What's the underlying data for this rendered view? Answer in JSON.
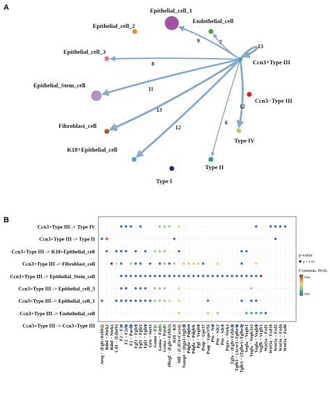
{
  "panel_a": {
    "label": "A",
    "hub_label": "Ccn3+Type III",
    "nodes": [
      {
        "name": "Epithelial_cell_1",
        "color": "#a353a6",
        "size": 3
      },
      {
        "name": "Endothelial_cell",
        "color": "#3fa34d",
        "size": 1
      },
      {
        "name": "Epithelial_cell_2",
        "color": "#e8901f",
        "size": 1
      },
      {
        "name": "Epithelial_cell_3",
        "color": "#e0749b",
        "size": 1
      },
      {
        "name": "Epithelial_Stem_cell",
        "color": "#b890c8",
        "size": 2
      },
      {
        "name": "Ccn3−Type III",
        "color": "#d42a1e",
        "size": 1
      },
      {
        "name": "Fibroblast_cell",
        "color": "#a85a1f",
        "size": 1
      },
      {
        "name": "Type IV",
        "color": "#a8d36a",
        "size": 1
      },
      {
        "name": "K18+Epithelial_cell",
        "color": "#5b9fd3",
        "size": 1
      },
      {
        "name": "Type II",
        "color": "#2e9e76",
        "size": 1
      },
      {
        "name": "Type I",
        "color": "#1f2d7a",
        "size": 1
      }
    ],
    "edges": [
      {
        "target": "Epithelial_cell_1",
        "weight": "9"
      },
      {
        "target": "Endothelial_cell",
        "weight": "7"
      },
      {
        "target": "Ccn3+Type III",
        "weight": "13"
      },
      {
        "target": "Epithelial_cell_3",
        "weight": "8"
      },
      {
        "target": "Epithelial_Stem_cell",
        "weight": "11"
      },
      {
        "target": "Type IV",
        "weight": "12"
      },
      {
        "target": "Fibroblast_cell",
        "weight": "13"
      },
      {
        "target": "Type II",
        "weight": "6"
      },
      {
        "target": "K18+Epithelial_cell",
        "weight": "12"
      }
    ],
    "edge_color": "#87a9cc"
  },
  "panel_b": {
    "label": "B",
    "rows": [
      "Ccn3+Type III -> Type IV",
      "Ccn3+Type III -> Type II",
      "Ccn3+Type III -> K18+Epithelial_cell",
      "Ccn3+Type III -> Fibroblast_cell",
      "Ccn3+Type III -> Epithelial_Stem_cell",
      "Ccn3+Type III -> Epithelial_cell_3",
      "Ccn3+Type III -> Epithelial_cell_1",
      "Ccn3+Type III -> Endothelial_cell",
      "Ccn3+Type III -> Ccn3+Type III"
    ],
    "columns": [
      "Areg − (Egfr+Erbb2)",
      "Bdnf − Ntrk2",
      "Bdnf − Ntrk2",
      "Cd1 − (Ednrb)",
      "F2 − F2r",
      "F2 − F2rl1",
      "F2 − Pard3",
      "Fgf1 − Fgfr1",
      "Fgf1 − Fgfr2",
      "Fgf1 − Fgfr3",
      "Grn − Sort1",
      "Gzma − F2r",
      "Gzma − F2rl1",
      "Gzma − Pard3",
      "Hbegf − (Egfr+Erbb2)",
      "Kitl − Kit",
      "Mif − (Cd74+Cxcr4)",
      "Nampt − (Itga5+Itgb1)",
      "Pdgfa − Pdgfra",
      "Pdgfa − Pdgfrb",
      "Pgf − Vegfr1",
      "Psap − Gpr37",
      "Psap − Gpr37l1",
      "Ptn − Ncl",
      "Ptn − Sdc2",
      "Ptn − Sdc4",
      "Ptprs − Ntrk3",
      "Tgfa − (Egfr+Erbb2)",
      "Tgfb3 − (Acvr1+Tgfbr1)",
      "Tgfb3 − (Tgfbr1+Tgfbr2)",
      "Vegfa − Vegfr1",
      "Vegfa − Vegfr1r2",
      "Vegfa − Vegfr2",
      "Vegfb − Vegfr1",
      "Wnt5a − Fzd1",
      "Wnt5a − Fzd10",
      "Wnt5a − Fzd2",
      "Wnt5a − Fzd4",
      "Wnt5a − Fzd6"
    ],
    "dots": [
      [
        0,
        4,
        "#3b6db4",
        0
      ],
      [
        0,
        5,
        "#3b6db4",
        0
      ],
      [
        0,
        6,
        "#3b6db4",
        0
      ],
      [
        0,
        8,
        "#3b6db4",
        0
      ],
      [
        0,
        12,
        "#8fd18a",
        0
      ],
      [
        0,
        13,
        "#8fd18a",
        0
      ],
      [
        0,
        14,
        "#8fd18a",
        0
      ],
      [
        0,
        16,
        "#f2d65a",
        0
      ],
      [
        0,
        32,
        "#3b6db4",
        0
      ],
      [
        0,
        35,
        "#3b6db4",
        0
      ],
      [
        0,
        36,
        "#3b6db4",
        0
      ],
      [
        0,
        37,
        "#3b6db4",
        0
      ],
      [
        0,
        38,
        "#3b6db4",
        0
      ],
      [
        1,
        0,
        "#3b6db4",
        0
      ],
      [
        1,
        1,
        "#d63c2c",
        0
      ],
      [
        1,
        15,
        "#3b6db4",
        0
      ],
      [
        1,
        36,
        "#3b6db4",
        0
      ],
      [
        2,
        1,
        "#3b6db4",
        0
      ],
      [
        2,
        3,
        "#3b6db4",
        0
      ],
      [
        2,
        4,
        "#3b6db4",
        0
      ],
      [
        2,
        5,
        "#3b6db4",
        0
      ],
      [
        2,
        7,
        "#3b6db4",
        0
      ],
      [
        2,
        9,
        "#3b6db4",
        0
      ],
      [
        2,
        11,
        "#8fd18a",
        0
      ],
      [
        2,
        12,
        "#8fd18a",
        0
      ],
      [
        2,
        13,
        "#8fd18a",
        0
      ],
      [
        2,
        16,
        "#3b6db4",
        0
      ],
      [
        2,
        29,
        "#3b6db4",
        0
      ],
      [
        2,
        30,
        "#3b6db4",
        0
      ],
      [
        3,
        2,
        "#b0202a",
        0
      ],
      [
        3,
        3,
        "#f2d65a",
        0
      ],
      [
        3,
        4,
        "#3b6db4",
        0
      ],
      [
        3,
        6,
        "#8fd18a",
        0
      ],
      [
        3,
        7,
        "#3b6db4",
        0
      ],
      [
        3,
        8,
        "#3b6db4",
        0
      ],
      [
        3,
        10,
        "#3b6db4",
        0
      ],
      [
        3,
        12,
        "#d63c2c",
        0
      ],
      [
        3,
        13,
        "#8fd18a",
        0
      ],
      [
        3,
        14,
        "#3b6db4",
        0
      ],
      [
        3,
        15,
        "#8fd18a",
        0
      ],
      [
        3,
        17,
        "#f2c55a",
        0
      ],
      [
        3,
        18,
        "#f2c55a",
        0
      ],
      [
        3,
        19,
        "#f2c55a",
        0
      ],
      [
        3,
        20,
        "#f2c55a",
        0
      ],
      [
        3,
        21,
        "#3b6db4",
        0
      ],
      [
        3,
        24,
        "#f2d65a",
        0
      ],
      [
        3,
        29,
        "#3b6db4",
        0
      ],
      [
        3,
        32,
        "#f2d65a",
        0
      ],
      [
        4,
        4,
        "#3b6db4",
        0
      ],
      [
        4,
        5,
        "#3b6db4",
        0
      ],
      [
        4,
        6,
        "#3b6db4",
        0
      ],
      [
        4,
        7,
        "#3b6db4",
        0
      ],
      [
        4,
        8,
        "#3b6db4",
        0
      ],
      [
        4,
        9,
        "#3b6db4",
        0
      ],
      [
        4,
        10,
        "#3b6db4",
        0
      ],
      [
        4,
        11,
        "#3b6db4",
        0
      ],
      [
        4,
        12,
        "#3b6db4",
        0
      ],
      [
        4,
        13,
        "#3b6db4",
        0
      ],
      [
        4,
        14,
        "#3b6db4",
        0
      ],
      [
        4,
        15,
        "#3b6db4",
        0
      ],
      [
        4,
        16,
        "#3b6db4",
        0
      ],
      [
        4,
        17,
        "#3b6db4",
        0
      ],
      [
        4,
        18,
        "#3b6db4",
        0
      ],
      [
        4,
        19,
        "#3b6db4",
        0
      ],
      [
        4,
        20,
        "#3b6db4",
        0
      ],
      [
        4,
        21,
        "#3b6db4",
        0
      ],
      [
        4,
        22,
        "#3b6db4",
        0
      ],
      [
        4,
        23,
        "#3b6db4",
        0
      ],
      [
        4,
        24,
        "#3b6db4",
        0
      ],
      [
        4,
        25,
        "#3b6db4",
        0
      ],
      [
        4,
        26,
        "#3b6db4",
        0
      ],
      [
        4,
        27,
        "#3b6db4",
        0
      ],
      [
        4,
        28,
        "#3b6db4",
        0
      ],
      [
        4,
        29,
        "#3b6db4",
        0
      ],
      [
        4,
        30,
        "#3b6db4",
        0
      ],
      [
        4,
        31,
        "#3b6db4",
        0
      ],
      [
        4,
        32,
        "#3b6db4",
        0
      ],
      [
        4,
        33,
        "#b0202a",
        0
      ],
      [
        5,
        4,
        "#3b6db4",
        0
      ],
      [
        5,
        5,
        "#3b6db4",
        0
      ],
      [
        5,
        7,
        "#3b6db4",
        0
      ],
      [
        5,
        8,
        "#3b6db4",
        0
      ],
      [
        5,
        9,
        "#3b6db4",
        0
      ],
      [
        5,
        11,
        "#8fd18a",
        0
      ],
      [
        5,
        12,
        "#8fd18a",
        0
      ],
      [
        5,
        13,
        "#8fd18a",
        0
      ],
      [
        5,
        16,
        "#f2d65a",
        0
      ],
      [
        5,
        31,
        "#8fd18a",
        0
      ],
      [
        6,
        0,
        "#3b6db4",
        0
      ],
      [
        6,
        3,
        "#3b6db4",
        0
      ],
      [
        6,
        4,
        "#3b6db4",
        0
      ],
      [
        6,
        5,
        "#3b6db4",
        0
      ],
      [
        6,
        6,
        "#3b6db4",
        0
      ],
      [
        6,
        7,
        "#3b6db4",
        0
      ],
      [
        6,
        8,
        "#3b6db4",
        0
      ],
      [
        6,
        9,
        "#3b6db4",
        0
      ],
      [
        6,
        10,
        "#3b6db4",
        0
      ],
      [
        6,
        11,
        "#8fd18a",
        0
      ],
      [
        6,
        12,
        "#8fd18a",
        0
      ],
      [
        6,
        13,
        "#8fd18a",
        0
      ],
      [
        6,
        14,
        "#f2d65a",
        0
      ],
      [
        6,
        16,
        "#f2d65a",
        0
      ],
      [
        6,
        22,
        "#3b6db4",
        0
      ],
      [
        6,
        29,
        "#3b6db4",
        0
      ],
      [
        6,
        31,
        "#3b6db4",
        0
      ],
      [
        6,
        32,
        "#3b6db4",
        0
      ],
      [
        7,
        16,
        "#f2c55a",
        0
      ],
      [
        7,
        22,
        "#f2c55a",
        0
      ],
      [
        7,
        24,
        "#8fd18a",
        0
      ],
      [
        7,
        30,
        "#2fa9a0",
        0
      ],
      [
        7,
        31,
        "#2fa9a0",
        0
      ],
      [
        7,
        32,
        "#2fa9a0",
        0
      ],
      [
        7,
        33,
        "#2fa9a0",
        0
      ],
      [
        7,
        34,
        "#3b6db4",
        0
      ],
      [
        8,
        0,
        "#f2a040",
        0
      ],
      [
        8,
        2,
        "#8fd18a",
        0
      ],
      [
        8,
        4,
        "#3b6db4",
        0
      ],
      [
        8,
        5,
        "#3b6db4",
        0
      ],
      [
        8,
        6,
        "#3b6db4",
        0
      ],
      [
        8,
        7,
        "#3b6db4",
        0
      ],
      [
        8,
        9,
        "#3b6db4",
        0
      ],
      [
        8,
        11,
        "#8fd18a",
        0
      ],
      [
        8,
        12,
        "#8fd18a",
        0
      ],
      [
        8,
        13,
        "#8fd18a",
        0
      ],
      [
        8,
        16,
        "#f2a040",
        0
      ],
      [
        8,
        17,
        "#3b6db4",
        0
      ],
      [
        8,
        18,
        "#3b6db4",
        0
      ],
      [
        8,
        20,
        "#3b6db4",
        0
      ],
      [
        8,
        23,
        "#3b6db4",
        0
      ],
      [
        8,
        25,
        "#3b6db4",
        0
      ],
      [
        8,
        27,
        "#3b6db4",
        0
      ],
      [
        8,
        28,
        "#3b6db4",
        0
      ],
      [
        8,
        29,
        "#3b6db4",
        0
      ],
      [
        8,
        32,
        "#3b6db4",
        0
      ]
    ],
    "legend": {
      "pvalue_title": "p-value",
      "pvalue_item": "p < 0.01",
      "commun_title": "Commun. Prob.",
      "max_label": "max",
      "min_label": "min",
      "gradient": [
        "#b0202a",
        "#f2a040",
        "#f2d65a",
        "#8fd18a",
        "#2fa9a0",
        "#3b6db4"
      ]
    }
  }
}
